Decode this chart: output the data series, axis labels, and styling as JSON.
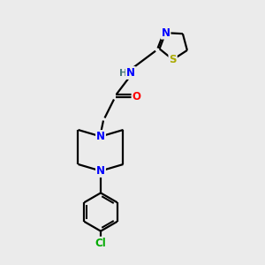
{
  "bg_color": "#ebebeb",
  "bond_color": "#000000",
  "atom_colors": {
    "N": "#0000ff",
    "O": "#ff0000",
    "S": "#aaaa00",
    "Cl": "#00aa00",
    "H": "#4a7a7a"
  },
  "line_width": 1.6,
  "font_size": 8.5,
  "figsize": [
    3.0,
    3.0
  ],
  "dpi": 100
}
